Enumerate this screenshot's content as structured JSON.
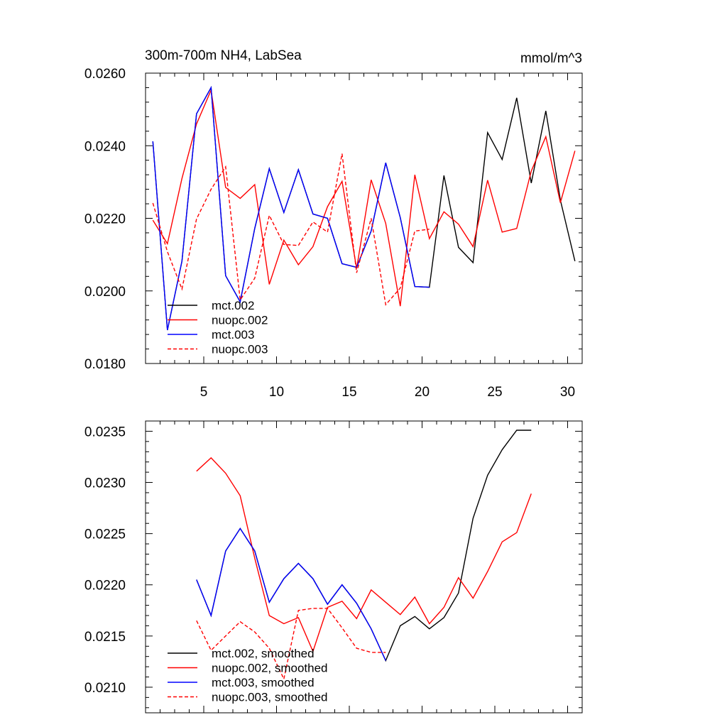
{
  "chart_data": [
    {
      "type": "line",
      "title": "300m-700m NH4, LabSea",
      "units": "mmol/m^3",
      "xlim": [
        1,
        31
      ],
      "ylim": [
        0.018,
        0.026
      ],
      "xticks": [
        5,
        10,
        15,
        20,
        25,
        30
      ],
      "xtick_labels": [
        "5",
        "10",
        "15",
        "20",
        "25",
        "30"
      ],
      "yticks": [
        0.018,
        0.02,
        0.022,
        0.024,
        0.026
      ],
      "ytick_labels": [
        "0.0180",
        "0.0200",
        "0.0220",
        "0.0240",
        "0.0260"
      ],
      "legend_position": "bottom-left",
      "series": [
        {
          "name": "mct.002",
          "color": "#000000",
          "dash": "solid",
          "x": [
            1.5,
            2.5,
            3.5,
            4.5,
            5.5,
            6.5,
            7.5,
            8.5,
            9.5,
            10.5,
            11.5,
            12.5,
            13.5,
            14.5,
            15.5,
            16.5,
            17.5,
            18.5,
            19.5,
            20.5,
            21.5,
            22.5,
            23.5,
            24.5,
            25.5,
            26.5,
            27.5,
            28.5,
            29.5,
            30.5
          ],
          "values": [
            0.02412,
            0.01892,
            0.02082,
            0.02488,
            0.0256,
            0.02042,
            0.0197,
            0.02172,
            0.02337,
            0.02216,
            0.02334,
            0.02212,
            0.022,
            0.02075,
            0.02065,
            0.02165,
            0.02353,
            0.02202,
            0.02012,
            0.0201,
            0.02318,
            0.0212,
            0.02078,
            0.02436,
            0.02362,
            0.02532,
            0.02297,
            0.02496,
            0.0225,
            0.02082
          ]
        },
        {
          "name": "nuopc.002",
          "color": "#ff0000",
          "dash": "solid",
          "x": [
            1.5,
            2.5,
            3.5,
            4.5,
            5.5,
            6.5,
            7.5,
            8.5,
            9.5,
            10.5,
            11.5,
            12.5,
            13.5,
            14.5,
            15.5,
            16.5,
            17.5,
            18.5,
            19.5,
            20.5,
            21.5,
            22.5,
            23.5,
            24.5,
            25.5,
            26.5,
            27.5,
            28.5,
            29.5,
            30.5
          ],
          "values": [
            0.02195,
            0.0213,
            0.0231,
            0.0246,
            0.02553,
            0.02285,
            0.02255,
            0.02293,
            0.02018,
            0.0214,
            0.02072,
            0.02122,
            0.02232,
            0.02302,
            0.02062,
            0.02306,
            0.02186,
            0.01958,
            0.0232,
            0.02144,
            0.02218,
            0.02184,
            0.02122,
            0.02305,
            0.02162,
            0.02172,
            0.0233,
            0.02425,
            0.02243,
            0.02386
          ]
        },
        {
          "name": "mct.003",
          "color": "#0000ff",
          "dash": "solid",
          "x": [
            1.5,
            2.5,
            3.5,
            4.5,
            5.5,
            6.5,
            7.5,
            8.5,
            9.5,
            10.5,
            11.5,
            12.5,
            13.5,
            14.5,
            15.5,
            16.5,
            17.5,
            18.5,
            19.5,
            20.5
          ],
          "values": [
            0.02412,
            0.01892,
            0.02082,
            0.02488,
            0.0256,
            0.02042,
            0.0197,
            0.02172,
            0.02337,
            0.02216,
            0.02334,
            0.02212,
            0.022,
            0.02075,
            0.02065,
            0.02165,
            0.02353,
            0.02202,
            0.02012,
            0.0201
          ]
        },
        {
          "name": "nuopc.003",
          "color": "#ff0000",
          "dash": "dashed",
          "x": [
            1.5,
            2.5,
            3.5,
            4.5,
            5.5,
            6.5,
            7.5,
            8.5,
            9.5,
            10.5,
            11.5,
            12.5,
            13.5,
            14.5,
            15.5,
            16.5,
            17.5,
            18.5,
            19.5,
            20.5
          ],
          "values": [
            0.02242,
            0.02108,
            0.02005,
            0.02198,
            0.0228,
            0.02342,
            0.01975,
            0.02035,
            0.02208,
            0.02128,
            0.02125,
            0.0219,
            0.02162,
            0.02378,
            0.0205,
            0.022,
            0.01962,
            0.02008,
            0.02165,
            0.0217
          ]
        }
      ]
    },
    {
      "type": "line",
      "title": "",
      "xlim": [
        1,
        31
      ],
      "ylim": [
        0.02075,
        0.0236
      ],
      "xticks": [
        5,
        10,
        15,
        20,
        25,
        30
      ],
      "xtick_labels": [
        "",
        "",
        "",
        "",
        "",
        ""
      ],
      "yticks": [
        0.021,
        0.0215,
        0.022,
        0.0225,
        0.023,
        0.0235
      ],
      "ytick_labels": [
        "0.0210",
        "0.0215",
        "0.0220",
        "0.0225",
        "0.0230",
        "0.0235"
      ],
      "legend_position": "bottom-left",
      "series": [
        {
          "name": "mct.002, smoothed",
          "color": "#000000",
          "dash": "solid",
          "x": [
            4.5,
            5.5,
            6.5,
            7.5,
            8.5,
            9.5,
            10.5,
            11.5,
            12.5,
            13.5,
            14.5,
            15.5,
            16.5,
            17.5,
            18.5,
            19.5,
            20.5,
            21.5,
            22.5,
            23.5,
            24.5,
            25.5,
            26.5,
            27.5
          ],
          "values": [
            0.02205,
            0.0217,
            0.02233,
            0.02255,
            0.02233,
            0.02183,
            0.02206,
            0.02221,
            0.02206,
            0.02181,
            0.022,
            0.02182,
            0.02157,
            0.02126,
            0.0216,
            0.02169,
            0.02157,
            0.02168,
            0.02192,
            0.02265,
            0.02307,
            0.02332,
            0.02351,
            0.02351
          ]
        },
        {
          "name": "nuopc.002, smoothed",
          "color": "#ff0000",
          "dash": "solid",
          "x": [
            4.5,
            5.5,
            6.5,
            7.5,
            8.5,
            9.5,
            10.5,
            11.5,
            12.5,
            13.5,
            14.5,
            15.5,
            16.5,
            17.5,
            18.5,
            19.5,
            20.5,
            21.5,
            22.5,
            23.5,
            24.5,
            25.5,
            26.5,
            27.5
          ],
          "values": [
            0.02311,
            0.02324,
            0.02309,
            0.02287,
            0.02226,
            0.0217,
            0.02162,
            0.02168,
            0.02135,
            0.02178,
            0.02184,
            0.02167,
            0.02195,
            0.02183,
            0.02171,
            0.02188,
            0.02162,
            0.02178,
            0.02207,
            0.02187,
            0.02213,
            0.02242,
            0.02251,
            0.02289
          ]
        },
        {
          "name": "mct.003, smoothed",
          "color": "#0000ff",
          "dash": "solid",
          "x": [
            4.5,
            5.5,
            6.5,
            7.5,
            8.5,
            9.5,
            10.5,
            11.5,
            12.5,
            13.5,
            14.5,
            15.5,
            16.5,
            17.5
          ],
          "values": [
            0.02205,
            0.0217,
            0.02233,
            0.02255,
            0.02233,
            0.02183,
            0.02206,
            0.02221,
            0.02206,
            0.02181,
            0.022,
            0.02182,
            0.02157,
            0.02126
          ]
        },
        {
          "name": "nuopc.003, smoothed",
          "color": "#ff0000",
          "dash": "dashed",
          "x": [
            4.5,
            5.5,
            6.5,
            7.5,
            8.5,
            9.5,
            10.5,
            11.5,
            12.5,
            13.5,
            14.5,
            15.5,
            16.5,
            17.5
          ],
          "values": [
            0.02165,
            0.02136,
            0.0215,
            0.02164,
            0.02154,
            0.02138,
            0.02108,
            0.02175,
            0.02177,
            0.02177,
            0.02158,
            0.02138,
            0.02134,
            0.02134
          ]
        }
      ]
    }
  ]
}
